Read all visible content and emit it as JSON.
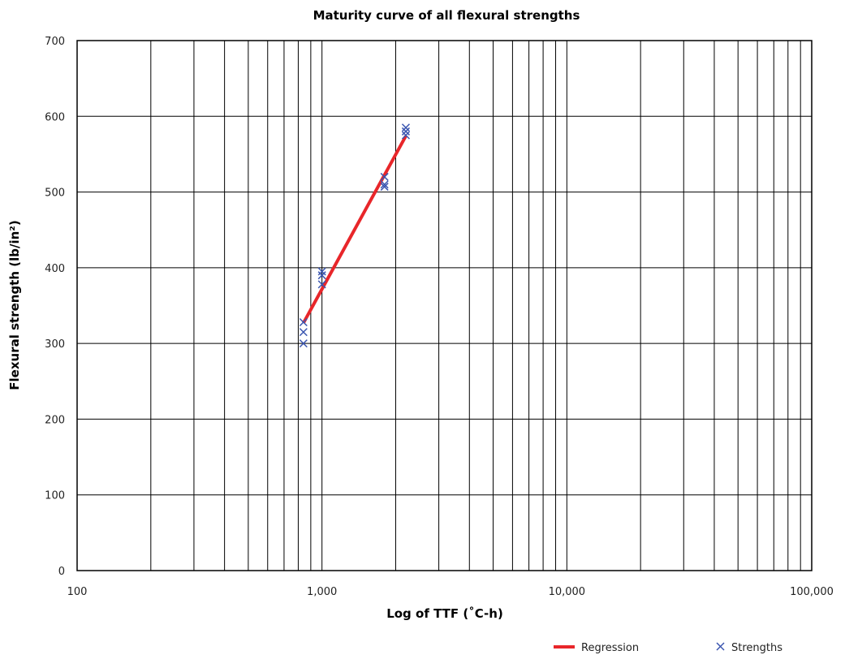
{
  "chart_data": {
    "type": "scatter",
    "title": "Maturity curve of all flexural strengths",
    "xlabel": "Log of TTF (˚C-h)",
    "ylabel": "Flexural strength (lb/in²)",
    "x_scale": "log",
    "xlim": [
      100,
      100000
    ],
    "ylim": [
      0,
      700
    ],
    "x_ticks": [
      100,
      1000,
      10000,
      100000
    ],
    "x_tick_labels": [
      "100",
      "1,000",
      "10,000",
      "100,000"
    ],
    "y_ticks": [
      0,
      100,
      200,
      300,
      400,
      500,
      600,
      700
    ],
    "y_tick_labels": [
      "0",
      "100",
      "200",
      "300",
      "400",
      "500",
      "600",
      "700"
    ],
    "grid": "log-minor vertical and major horizontal",
    "legend_position": "bottom-right",
    "series": [
      {
        "name": "Regression",
        "kind": "line",
        "color": "#e8262a",
        "x": [
          840,
          2200
        ],
        "y": [
          327,
          574
        ]
      },
      {
        "name": "Strengths",
        "kind": "scatter",
        "marker": "x",
        "color": "#3a55b0",
        "x": [
          840,
          840,
          840,
          1000,
          1000,
          1000,
          1800,
          1800,
          1800,
          2200,
          2200,
          2200
        ],
        "y": [
          300,
          315,
          328,
          378,
          390,
          395,
          507,
          510,
          520,
          575,
          580,
          585
        ]
      }
    ]
  }
}
